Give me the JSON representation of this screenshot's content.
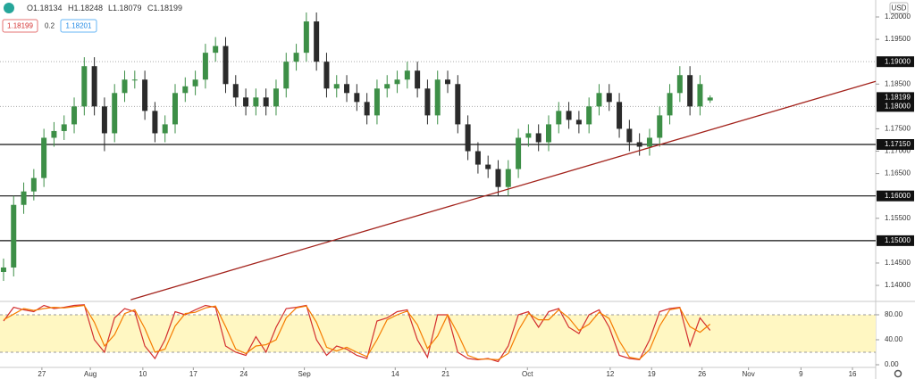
{
  "chart_data": [
    {
      "type": "candlestick",
      "header_labels": [
        "O",
        "H",
        "L",
        "C"
      ],
      "currency": "USD",
      "spread": 0.2,
      "ask": 1.18201,
      "up_color": "#3d8f47",
      "down_color": "#2b2b2b",
      "xlim": [
        -0.35,
        86.4
      ],
      "xticks": [
        {
          "value": 3.8,
          "label": "27"
        },
        {
          "value": 8.6,
          "label": "Aug"
        },
        {
          "value": 13.8,
          "label": "10"
        },
        {
          "value": 18.8,
          "label": "17"
        },
        {
          "value": 23.8,
          "label": "24"
        },
        {
          "value": 29.8,
          "label": "Sep"
        },
        {
          "value": 38.8,
          "label": "14"
        },
        {
          "value": 43.8,
          "label": "21"
        },
        {
          "value": 51.9,
          "label": "Oct"
        },
        {
          "value": 60.1,
          "label": "12"
        },
        {
          "value": 64.2,
          "label": "19"
        },
        {
          "value": 69.2,
          "label": "26"
        },
        {
          "value": 73.8,
          "label": "Nov"
        },
        {
          "value": 79,
          "label": "9"
        },
        {
          "value": 84.1,
          "label": "16"
        }
      ],
      "ylim": [
        1.13642,
        1.20379
      ],
      "yticks": [
        {
          "value": 1.2,
          "label": "1.20000"
        },
        {
          "value": 1.195,
          "label": "1.19500"
        },
        {
          "value": 1.185,
          "label": "1.18500"
        },
        {
          "value": 1.175,
          "label": "1.17500"
        },
        {
          "value": 1.17,
          "label": "1.17000"
        },
        {
          "value": 1.165,
          "label": "1.16500"
        },
        {
          "value": 1.155,
          "label": "1.15500"
        },
        {
          "value": 1.145,
          "label": "1.14500"
        },
        {
          "value": 1.14,
          "label": "1.14000"
        }
      ],
      "levels": [
        {
          "value": 1.19,
          "label": "1.19000",
          "style": "dotted"
        },
        {
          "value": 1.18,
          "label": "1.18000",
          "style": "dotted"
        },
        {
          "value": 1.1715,
          "label": "1.17150",
          "style": "solid"
        },
        {
          "value": 1.16,
          "label": "1.16000",
          "style": "solid"
        },
        {
          "value": 1.15,
          "label": "1.15000",
          "style": "solid"
        }
      ],
      "trendline": {
        "color": "#a3231c",
        "x": [
          12.6,
          86.4
        ],
        "y": [
          1.1368,
          1.1856
        ]
      },
      "open": [
        1.143,
        1.144,
        1.158,
        1.161,
        1.164,
        1.173,
        1.1745,
        1.176,
        1.18,
        1.189,
        1.18,
        1.174,
        1.183,
        1.186,
        1.186,
        1.179,
        1.174,
        1.176,
        1.183,
        1.1845,
        1.186,
        1.192,
        1.1935,
        1.185,
        1.182,
        1.18,
        1.182,
        1.18,
        1.184,
        1.19,
        1.192,
        1.199,
        1.19,
        1.184,
        1.185,
        1.183,
        1.181,
        1.178,
        1.184,
        1.185,
        1.186,
        1.188,
        1.184,
        1.178,
        1.186,
        1.185,
        1.176,
        1.17,
        1.167,
        1.166,
        1.162,
        1.166,
        1.173,
        1.174,
        1.172,
        1.176,
        1.179,
        1.177,
        1.176,
        1.18,
        1.183,
        1.181,
        1.175,
        1.172,
        1.171,
        1.173,
        1.178,
        1.183,
        1.187,
        1.18,
        1.18134
      ],
      "high": [
        1.146,
        1.16,
        1.163,
        1.166,
        1.175,
        1.1765,
        1.178,
        1.182,
        1.191,
        1.191,
        1.182,
        1.185,
        1.188,
        1.188,
        1.188,
        1.181,
        1.178,
        1.185,
        1.1865,
        1.188,
        1.194,
        1.1955,
        1.1955,
        1.187,
        1.184,
        1.184,
        1.184,
        1.186,
        1.192,
        1.194,
        1.201,
        1.201,
        1.192,
        1.187,
        1.187,
        1.185,
        1.183,
        1.186,
        1.187,
        1.188,
        1.19,
        1.19,
        1.186,
        1.188,
        1.188,
        1.187,
        1.178,
        1.172,
        1.169,
        1.168,
        1.168,
        1.175,
        1.176,
        1.176,
        1.178,
        1.181,
        1.181,
        1.179,
        1.182,
        1.185,
        1.185,
        1.183,
        1.177,
        1.174,
        1.175,
        1.18,
        1.185,
        1.189,
        1.189,
        1.187,
        1.18248
      ],
      "low": [
        1.141,
        1.142,
        1.156,
        1.159,
        1.162,
        1.171,
        1.1725,
        1.174,
        1.178,
        1.178,
        1.17,
        1.172,
        1.181,
        1.184,
        1.177,
        1.172,
        1.172,
        1.174,
        1.181,
        1.1825,
        1.184,
        1.19,
        1.183,
        1.18,
        1.178,
        1.178,
        1.178,
        1.178,
        1.182,
        1.188,
        1.19,
        1.188,
        1.182,
        1.182,
        1.181,
        1.179,
        1.176,
        1.176,
        1.182,
        1.183,
        1.184,
        1.182,
        1.176,
        1.176,
        1.183,
        1.174,
        1.168,
        1.165,
        1.164,
        1.16,
        1.16,
        1.164,
        1.171,
        1.17,
        1.17,
        1.174,
        1.175,
        1.174,
        1.174,
        1.178,
        1.179,
        1.173,
        1.17,
        1.169,
        1.169,
        1.171,
        1.176,
        1.181,
        1.178,
        1.178,
        1.18079
      ],
      "close": [
        1.144,
        1.158,
        1.161,
        1.164,
        1.173,
        1.1745,
        1.176,
        1.18,
        1.189,
        1.18,
        1.174,
        1.183,
        1.186,
        1.186,
        1.179,
        1.174,
        1.176,
        1.183,
        1.1845,
        1.186,
        1.192,
        1.1935,
        1.185,
        1.182,
        1.18,
        1.182,
        1.18,
        1.184,
        1.19,
        1.192,
        1.199,
        1.19,
        1.184,
        1.185,
        1.183,
        1.181,
        1.178,
        1.184,
        1.185,
        1.186,
        1.188,
        1.184,
        1.178,
        1.186,
        1.185,
        1.176,
        1.17,
        1.167,
        1.166,
        1.162,
        1.166,
        1.173,
        1.174,
        1.172,
        1.176,
        1.179,
        1.177,
        1.176,
        1.18,
        1.183,
        1.181,
        1.175,
        1.172,
        1.171,
        1.173,
        1.178,
        1.183,
        1.187,
        1.18,
        1.185,
        1.18199
      ]
    },
    {
      "type": "line",
      "ylim": [
        -4.3,
        101.4
      ],
      "yticks": [
        {
          "value": 80,
          "label": "80.00"
        },
        {
          "value": 40,
          "label": "40.00"
        },
        {
          "value": 0,
          "label": "0.00"
        }
      ],
      "band": [
        20,
        80
      ],
      "band_color": "#fff7c2",
      "series": [
        {
          "color": "#d32f2f",
          "values": [
            70,
            92,
            88,
            85,
            95,
            90,
            92,
            95,
            96,
            40,
            20,
            75,
            90,
            85,
            30,
            10,
            40,
            85,
            80,
            88,
            95,
            92,
            30,
            20,
            15,
            45,
            20,
            60,
            90,
            92,
            95,
            40,
            15,
            30,
            25,
            15,
            10,
            70,
            75,
            85,
            88,
            40,
            12,
            80,
            80,
            20,
            10,
            8,
            10,
            5,
            30,
            80,
            85,
            60,
            85,
            90,
            60,
            50,
            80,
            88,
            60,
            15,
            10,
            8,
            40,
            85,
            90,
            92,
            30,
            75,
            55
          ]
        },
        {
          "color": "#f57c00",
          "values": [
            72,
            81,
            90,
            87,
            90,
            92,
            91,
            93,
            95,
            68,
            30,
            48,
            82,
            88,
            58,
            20,
            25,
            62,
            82,
            84,
            91,
            94,
            61,
            25,
            18,
            30,
            32,
            40,
            75,
            91,
            94,
            68,
            28,
            22,
            28,
            20,
            13,
            40,
            72,
            80,
            86,
            64,
            26,
            46,
            80,
            50,
            15,
            9,
            9,
            8,
            18,
            55,
            82,
            72,
            72,
            88,
            75,
            55,
            65,
            84,
            74,
            38,
            12,
            9,
            24,
            62,
            88,
            91,
            61,
            52,
            65
          ]
        }
      ]
    }
  ]
}
